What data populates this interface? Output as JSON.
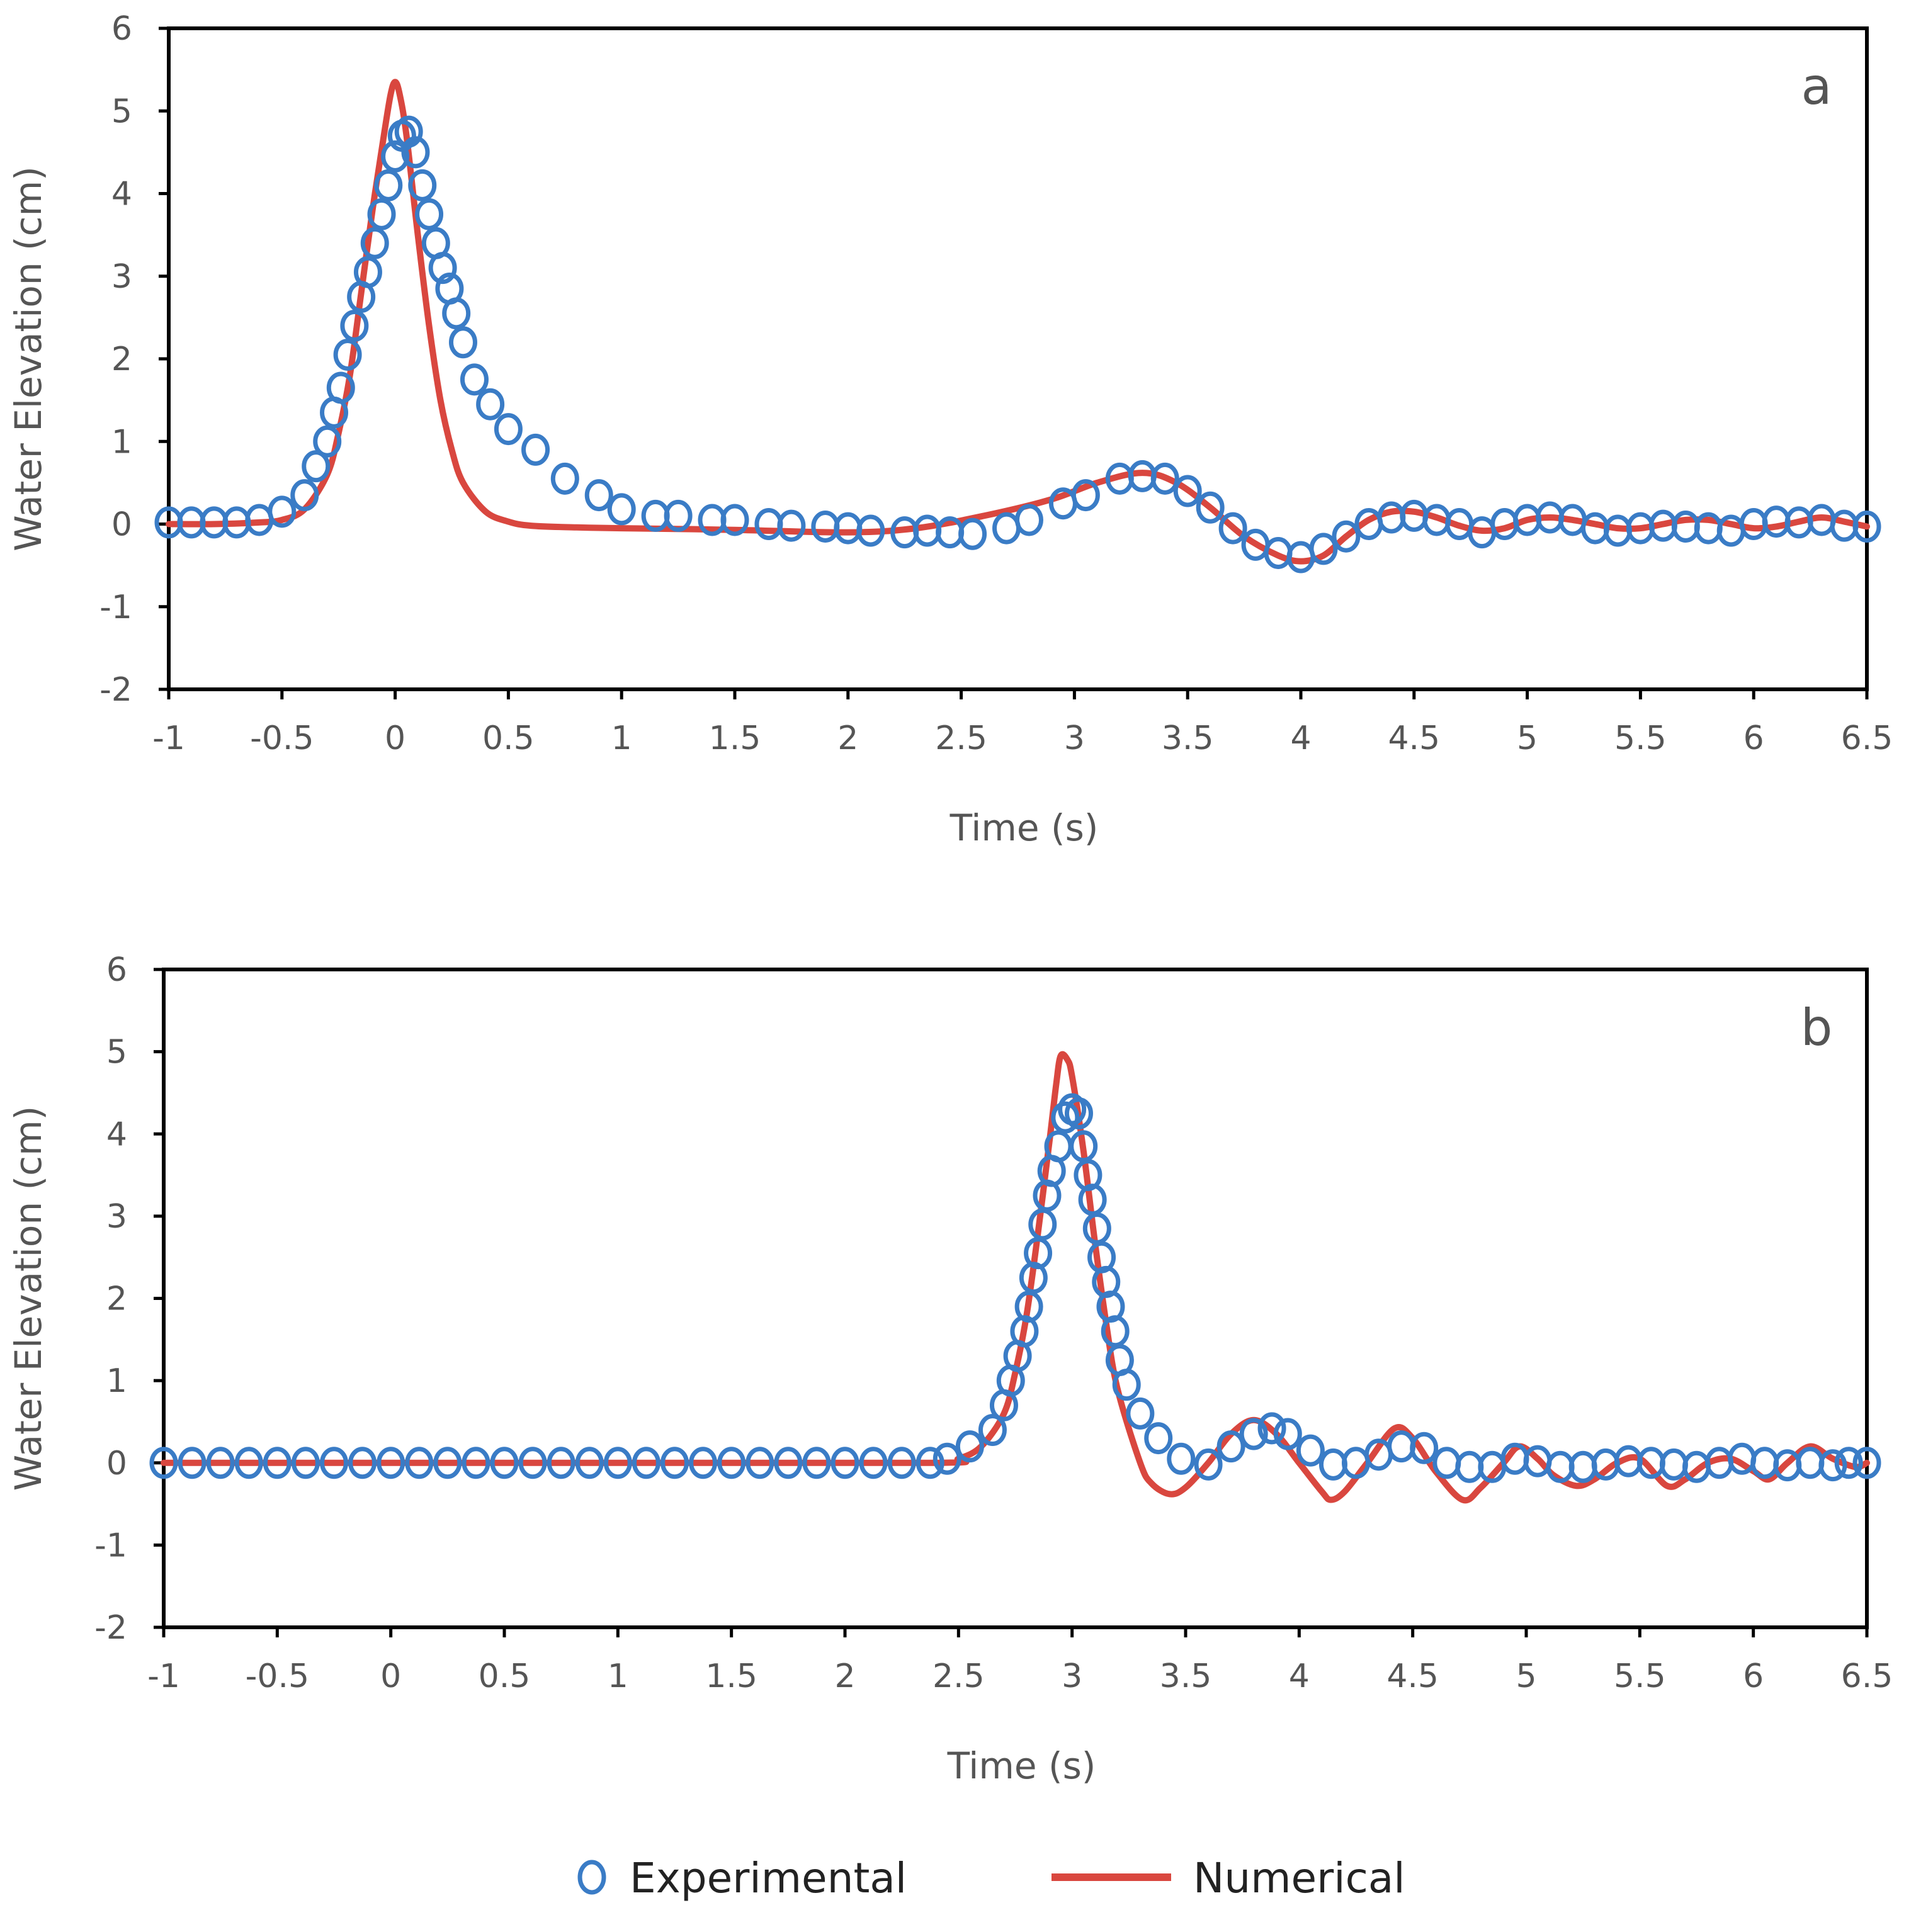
{
  "chart_data": [
    {
      "type": "line",
      "panel_label": "a",
      "xlabel": "Time (s)",
      "ylabel": "Water Elevation (cm)",
      "xlim": [
        -1,
        6.5
      ],
      "ylim": [
        -2,
        6
      ],
      "xticks": [
        "-1",
        "-0.5",
        "0",
        "0.5",
        "1",
        "1.5",
        "2",
        "2.5",
        "3",
        "3.5",
        "4",
        "4.5",
        "5",
        "5.5",
        "6",
        "6.5"
      ],
      "yticks": [
        "-2",
        "-1",
        "0",
        "1",
        "2",
        "3",
        "4",
        "5",
        "6"
      ],
      "series": [
        {
          "name": "Experimental",
          "marker": "circle",
          "color": "#3a7cc6",
          "x": [
            -1.0,
            -0.9,
            -0.8,
            -0.7,
            -0.6,
            -0.5,
            -0.4,
            -0.35,
            -0.3,
            -0.27,
            -0.24,
            -0.21,
            -0.18,
            -0.15,
            -0.12,
            -0.09,
            -0.06,
            -0.03,
            0.0,
            0.03,
            0.06,
            0.09,
            0.12,
            0.15,
            0.18,
            0.21,
            0.24,
            0.27,
            0.3,
            0.35,
            0.42,
            0.5,
            0.62,
            0.75,
            0.9,
            1.0,
            1.15,
            1.25,
            1.4,
            1.5,
            1.65,
            1.75,
            1.9,
            2.0,
            2.1,
            2.25,
            2.35,
            2.45,
            2.55,
            2.7,
            2.8,
            2.95,
            3.05,
            3.2,
            3.3,
            3.4,
            3.5,
            3.6,
            3.7,
            3.8,
            3.9,
            4.0,
            4.1,
            4.2,
            4.3,
            4.4,
            4.5,
            4.6,
            4.7,
            4.8,
            4.9,
            5.0,
            5.1,
            5.2,
            5.3,
            5.4,
            5.5,
            5.6,
            5.7,
            5.8,
            5.9,
            6.0,
            6.1,
            6.2,
            6.3,
            6.4,
            6.5
          ],
          "y": [
            0.02,
            0.02,
            0.02,
            0.02,
            0.05,
            0.15,
            0.35,
            0.7,
            1.0,
            1.35,
            1.65,
            2.05,
            2.4,
            2.75,
            3.05,
            3.4,
            3.75,
            4.1,
            4.45,
            4.7,
            4.75,
            4.5,
            4.1,
            3.75,
            3.4,
            3.1,
            2.85,
            2.55,
            2.2,
            1.75,
            1.45,
            1.15,
            0.9,
            0.55,
            0.35,
            0.18,
            0.1,
            0.1,
            0.05,
            0.05,
            0.0,
            -0.02,
            -0.03,
            -0.05,
            -0.08,
            -0.1,
            -0.08,
            -0.1,
            -0.12,
            -0.05,
            0.05,
            0.25,
            0.35,
            0.55,
            0.58,
            0.55,
            0.4,
            0.2,
            -0.05,
            -0.25,
            -0.35,
            -0.4,
            -0.3,
            -0.15,
            0.0,
            0.08,
            0.1,
            0.05,
            0.0,
            -0.1,
            0.0,
            0.05,
            0.08,
            0.05,
            -0.05,
            -0.08,
            -0.05,
            -0.02,
            -0.03,
            -0.05,
            -0.08,
            0.0,
            0.03,
            0.02,
            0.05,
            -0.02,
            -0.03
          ]
        },
        {
          "name": "Numerical",
          "marker": "line",
          "color": "#d9473f",
          "x": [
            -1.0,
            -0.8,
            -0.6,
            -0.5,
            -0.4,
            -0.3,
            -0.25,
            -0.2,
            -0.15,
            -0.1,
            -0.05,
            -0.02,
            0.0,
            0.02,
            0.05,
            0.1,
            0.15,
            0.2,
            0.25,
            0.3,
            0.4,
            0.5,
            0.6,
            0.8,
            1.0,
            1.5,
            2.0,
            2.3,
            2.6,
            2.9,
            3.1,
            3.3,
            3.45,
            3.6,
            3.75,
            3.9,
            4.0,
            4.1,
            4.2,
            4.3,
            4.4,
            4.5,
            4.6,
            4.7,
            4.8,
            4.9,
            5.0,
            5.1,
            5.2,
            5.3,
            5.4,
            5.5,
            5.6,
            5.7,
            5.8,
            5.9,
            6.0,
            6.1,
            6.2,
            6.3,
            6.4,
            6.5
          ],
          "y": [
            0.0,
            0.0,
            0.02,
            0.05,
            0.18,
            0.6,
            1.1,
            1.8,
            2.8,
            3.8,
            4.7,
            5.2,
            5.35,
            5.2,
            4.7,
            3.5,
            2.4,
            1.5,
            0.9,
            0.5,
            0.15,
            0.03,
            -0.02,
            -0.04,
            -0.05,
            -0.07,
            -0.1,
            -0.05,
            0.1,
            0.3,
            0.5,
            0.62,
            0.5,
            0.2,
            -0.15,
            -0.38,
            -0.45,
            -0.38,
            -0.15,
            0.05,
            0.15,
            0.15,
            0.08,
            -0.02,
            -0.08,
            -0.05,
            0.05,
            0.08,
            0.05,
            0.0,
            -0.05,
            -0.05,
            0.0,
            0.05,
            0.05,
            0.0,
            -0.05,
            -0.03,
            0.03,
            0.08,
            0.03,
            -0.03
          ]
        }
      ]
    },
    {
      "type": "line",
      "panel_label": "b",
      "xlabel": "Time (s)",
      "ylabel": "Water Elevation (cm)",
      "xlim": [
        -1,
        6.5
      ],
      "ylim": [
        -2,
        6
      ],
      "xticks": [
        "-1",
        "-0.5",
        "0",
        "0.5",
        "1",
        "1.5",
        "2",
        "2.5",
        "3",
        "3.5",
        "4",
        "4.5",
        "5",
        "5.5",
        "6",
        "6.5"
      ],
      "yticks": [
        "-2",
        "-1",
        "0",
        "1",
        "2",
        "3",
        "4",
        "5",
        "6"
      ],
      "series": [
        {
          "name": "Experimental",
          "marker": "circle",
          "color": "#3a7cc6",
          "x": [
            -1.0,
            -0.875,
            -0.75,
            -0.625,
            -0.5,
            -0.375,
            -0.25,
            -0.125,
            0.0,
            0.125,
            0.25,
            0.375,
            0.5,
            0.625,
            0.75,
            0.875,
            1.0,
            1.125,
            1.25,
            1.375,
            1.5,
            1.625,
            1.75,
            1.875,
            2.0,
            2.125,
            2.25,
            2.375,
            2.45,
            2.55,
            2.65,
            2.7,
            2.73,
            2.76,
            2.79,
            2.81,
            2.83,
            2.85,
            2.87,
            2.89,
            2.91,
            2.94,
            2.97,
            3.0,
            3.03,
            3.05,
            3.07,
            3.09,
            3.11,
            3.13,
            3.15,
            3.17,
            3.19,
            3.21,
            3.24,
            3.3,
            3.38,
            3.48,
            3.6,
            3.7,
            3.8,
            3.88,
            3.95,
            4.05,
            4.15,
            4.25,
            4.35,
            4.45,
            4.55,
            4.65,
            4.75,
            4.85,
            4.95,
            5.05,
            5.15,
            5.25,
            5.35,
            5.45,
            5.55,
            5.65,
            5.75,
            5.85,
            5.95,
            6.05,
            6.15,
            6.25,
            6.35,
            6.42,
            6.5
          ],
          "y": [
            0.0,
            0.0,
            0.0,
            0.0,
            0.0,
            0.0,
            0.0,
            0.0,
            0.0,
            0.0,
            0.0,
            0.0,
            0.0,
            0.0,
            0.0,
            0.0,
            0.0,
            0.0,
            0.0,
            0.0,
            0.0,
            0.0,
            0.0,
            0.0,
            0.0,
            0.0,
            0.0,
            0.0,
            0.05,
            0.2,
            0.4,
            0.7,
            1.0,
            1.3,
            1.6,
            1.9,
            2.25,
            2.55,
            2.9,
            3.25,
            3.55,
            3.85,
            4.2,
            4.3,
            4.25,
            3.85,
            3.5,
            3.2,
            2.85,
            2.5,
            2.2,
            1.9,
            1.6,
            1.25,
            0.95,
            0.6,
            0.3,
            0.05,
            -0.02,
            0.2,
            0.35,
            0.42,
            0.35,
            0.15,
            -0.02,
            0.0,
            0.1,
            0.2,
            0.18,
            0.0,
            -0.05,
            -0.05,
            0.05,
            0.02,
            -0.05,
            -0.05,
            -0.02,
            0.02,
            0.0,
            -0.02,
            -0.05,
            0.0,
            0.05,
            0.0,
            -0.03,
            0.0,
            -0.03,
            0.0,
            0.0
          ]
        },
        {
          "name": "Numerical",
          "marker": "line",
          "color": "#d9473f",
          "x": [
            -1.0,
            1.0,
            2.4,
            2.5,
            2.6,
            2.7,
            2.75,
            2.8,
            2.85,
            2.9,
            2.93,
            2.95,
            2.98,
            3.0,
            3.05,
            3.1,
            3.15,
            3.2,
            3.3,
            3.35,
            3.43,
            3.5,
            3.6,
            3.7,
            3.8,
            3.9,
            4.0,
            4.1,
            4.14,
            4.2,
            4.3,
            4.42,
            4.5,
            4.6,
            4.72,
            4.8,
            4.9,
            4.97,
            5.05,
            5.12,
            5.22,
            5.3,
            5.4,
            5.5,
            5.62,
            5.7,
            5.8,
            5.9,
            6.0,
            6.07,
            6.15,
            6.25,
            6.35,
            6.45,
            6.5
          ],
          "y": [
            0.0,
            0.0,
            0.0,
            0.05,
            0.2,
            0.6,
            1.1,
            1.8,
            2.8,
            3.9,
            4.6,
            4.95,
            4.9,
            4.7,
            3.8,
            2.7,
            1.7,
            0.9,
            0.0,
            -0.25,
            -0.38,
            -0.3,
            0.0,
            0.35,
            0.52,
            0.35,
            0.0,
            -0.35,
            -0.45,
            -0.35,
            0.0,
            0.42,
            0.3,
            -0.1,
            -0.45,
            -0.3,
            0.0,
            0.2,
            0.05,
            -0.15,
            -0.28,
            -0.2,
            0.0,
            0.05,
            -0.28,
            -0.2,
            0.0,
            0.05,
            -0.1,
            -0.2,
            0.0,
            0.2,
            0.05,
            -0.05,
            0.0
          ]
        }
      ]
    }
  ],
  "legend": {
    "experimental_label": "Experimental",
    "numerical_label": "Numerical"
  }
}
